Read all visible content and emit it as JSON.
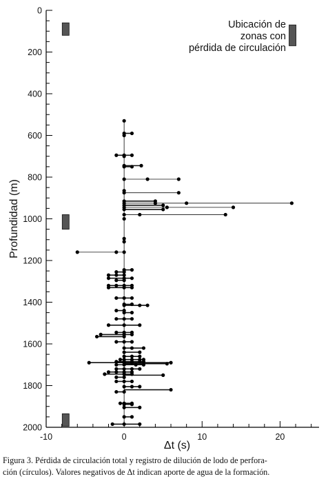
{
  "chart_data": {
    "type": "scatter",
    "xlabel": "Δt (s)",
    "ylabel": "Profundidad (m)",
    "xlim": [
      -10,
      25
    ],
    "ylim": [
      2000,
      0
    ],
    "x_ticks": [
      -10,
      0,
      10,
      20
    ],
    "y_ticks": [
      0,
      200,
      400,
      600,
      800,
      1000,
      1200,
      1400,
      1600,
      1800,
      2000
    ],
    "grid": false,
    "legend": {
      "position": "top-right",
      "lines": [
        "Ubicación de",
        "zonas con",
        "pérdida de circulación"
      ]
    },
    "loss_zones": [
      {
        "x": -7.5,
        "top": 60,
        "bottom": 120
      },
      {
        "x": -7.5,
        "top": 980,
        "bottom": 1050
      },
      {
        "x": -7.5,
        "top": 1935,
        "bottom": 1995
      },
      {
        "x": 21.6,
        "top": 70,
        "bottom": 170
      }
    ],
    "series": [
      {
        "values": [
          {
            "depth": 530,
            "values": [
              0
            ]
          },
          {
            "depth": 590,
            "values": [
              0,
              1
            ]
          },
          {
            "depth": 600,
            "values": [
              0
            ]
          },
          {
            "depth": 695,
            "values": [
              -1,
              0,
              1
            ]
          },
          {
            "depth": 700,
            "values": [
              0
            ]
          },
          {
            "depth": 745,
            "values": [
              0,
              2.2
            ]
          },
          {
            "depth": 750,
            "values": [
              0,
              1
            ]
          },
          {
            "depth": 810,
            "values": [
              0,
              3,
              7
            ]
          },
          {
            "depth": 865,
            "values": [
              0
            ]
          },
          {
            "depth": 875,
            "values": [
              0,
              7
            ]
          },
          {
            "depth": 915,
            "values": [
              0,
              4
            ]
          },
          {
            "depth": 925,
            "values": [
              0,
              4,
              8,
              21.5
            ]
          },
          {
            "depth": 935,
            "values": [
              0,
              5
            ]
          },
          {
            "depth": 945,
            "values": [
              0,
              5.5,
              14
            ]
          },
          {
            "depth": 955,
            "values": [
              0,
              5
            ]
          },
          {
            "depth": 980,
            "values": [
              0,
              2,
              13
            ]
          },
          {
            "depth": 1000,
            "values": [
              0
            ]
          },
          {
            "depth": 1095,
            "values": [
              0
            ]
          },
          {
            "depth": 1110,
            "values": [
              0
            ]
          },
          {
            "depth": 1160,
            "values": [
              -6,
              -1,
              0
            ]
          },
          {
            "depth": 1245,
            "values": [
              0,
              1
            ]
          },
          {
            "depth": 1255,
            "values": [
              -1,
              0
            ]
          },
          {
            "depth": 1270,
            "values": [
              -2,
              -1,
              0
            ]
          },
          {
            "depth": 1285,
            "values": [
              -2,
              0,
              1
            ]
          },
          {
            "depth": 1295,
            "values": [
              -1,
              0
            ]
          },
          {
            "depth": 1320,
            "values": [
              -2,
              -1,
              0,
              1
            ]
          },
          {
            "depth": 1330,
            "values": [
              -2,
              0,
              1
            ]
          },
          {
            "depth": 1380,
            "values": [
              -1,
              0,
              1
            ]
          },
          {
            "depth": 1410,
            "values": [
              0,
              1
            ]
          },
          {
            "depth": 1415,
            "values": [
              0,
              2,
              3
            ]
          },
          {
            "depth": 1440,
            "values": [
              -1,
              0
            ]
          },
          {
            "depth": 1450,
            "values": [
              0,
              1
            ]
          },
          {
            "depth": 1480,
            "values": [
              -1,
              0,
              1
            ]
          },
          {
            "depth": 1510,
            "values": [
              -2,
              0,
              2
            ]
          },
          {
            "depth": 1545,
            "values": [
              -1,
              0,
              1
            ]
          },
          {
            "depth": 1555,
            "values": [
              -3,
              0,
              1
            ]
          },
          {
            "depth": 1565,
            "values": [
              -3.5,
              0
            ]
          },
          {
            "depth": 1590,
            "values": [
              -1,
              0,
              1
            ]
          },
          {
            "depth": 1620,
            "values": [
              0,
              1,
              2.5
            ]
          },
          {
            "depth": 1640,
            "values": [
              0,
              2
            ]
          },
          {
            "depth": 1660,
            "values": [
              0,
              1,
              2
            ]
          },
          {
            "depth": 1675,
            "values": [
              -0.5,
              0,
              1,
              2,
              2.5
            ]
          },
          {
            "depth": 1685,
            "values": [
              -1,
              0,
              1,
              2,
              2.5
            ]
          },
          {
            "depth": 1690,
            "values": [
              -4.5,
              0,
              1
            ]
          },
          {
            "depth": 1700,
            "values": [
              -1,
              0,
              1.5,
              2.5
            ]
          },
          {
            "depth": 1720,
            "values": [
              -1,
              0,
              1,
              2
            ]
          },
          {
            "depth": 1735,
            "values": [
              -2,
              -1,
              0,
              1
            ]
          },
          {
            "depth": 1745,
            "values": [
              -2.5,
              0,
              1
            ]
          },
          {
            "depth": 1760,
            "values": [
              -1,
              0
            ]
          },
          {
            "depth": 1780,
            "values": [
              -1,
              0,
              1
            ]
          },
          {
            "depth": 1805,
            "values": [
              0,
              1,
              2
            ]
          },
          {
            "depth": 1830,
            "values": [
              -1,
              0
            ]
          },
          {
            "depth": 1885,
            "values": [
              -0.5,
              0,
              1
            ]
          },
          {
            "depth": 1890,
            "values": [
              0,
              1
            ]
          },
          {
            "depth": 1905,
            "values": [
              0,
              2
            ]
          },
          {
            "depth": 1950,
            "values": [
              0,
              1
            ]
          },
          {
            "depth": 1985,
            "values": [
              -1.5,
              0,
              2
            ]
          }
        ]
      }
    ],
    "extra_segments": [
      {
        "depth": 1690,
        "values": [
          0,
          6
        ]
      },
      {
        "depth": 1750,
        "values": [
          0,
          5
        ]
      },
      {
        "depth": 1820,
        "values": [
          0,
          6
        ]
      },
      {
        "depth": 1695,
        "values": [
          0,
          5.5
        ]
      }
    ]
  },
  "caption": {
    "line1": "Figura 3. Pérdida de circulación total y registro de dilución de lodo de perfora-",
    "line2": "ción (círculos). Valores negativos de Δt indican aporte de agua de la formación."
  }
}
